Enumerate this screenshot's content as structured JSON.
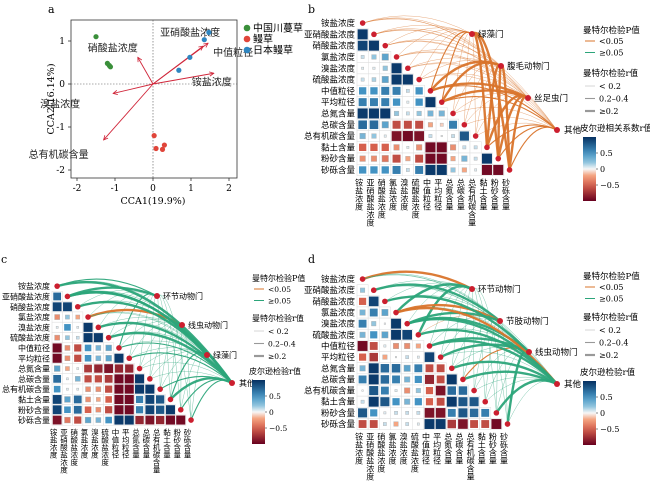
{
  "panel_labels": [
    "a",
    "b",
    "c",
    "d"
  ],
  "legend_common": {
    "p_title": "曼特尔检验P值",
    "p_items": [
      "<0.05",
      "≥0.05"
    ],
    "r_title": "曼特尔检验r值",
    "r_items": [
      "< 0.2",
      "0.2–0.4",
      "≥0.2"
    ],
    "colorbar_ticks": [
      "0.5",
      "0",
      "−0.5"
    ],
    "colorbar_tick_values": [
      0.5,
      0,
      -0.5
    ]
  },
  "colors": {
    "p_significant": "#d9742b",
    "p_nonsignificant": "#2ca57a",
    "point_red": "#d9433f",
    "arrow": "#d0263a",
    "green_group": "#3a8f3a",
    "red_group": "#e0453a",
    "blue_group": "#2e86c1"
  },
  "variables": [
    "铵盐浓度",
    "亚硝酸盐浓度",
    "硝酸盐浓度",
    "氯盐浓度",
    "溴盐浓度",
    "硫酸盐浓度",
    "中值粒径",
    "平均粒径",
    "总氮含量",
    "总碳含量",
    "总有机碳含量",
    "黏土含量",
    "粉砂含量",
    "砂砾含量"
  ],
  "chart_data": [
    {
      "type": "scatter",
      "xlabel": "CCA1(19.9%)",
      "ylabel": "CCA2(16.14%)",
      "xlim": [
        -2.2,
        2.2
      ],
      "ylim": [
        -2.2,
        1.5
      ],
      "xticks": [
        -2,
        -1,
        0,
        1,
        2
      ],
      "yticks": [
        1,
        0,
        -1,
        -2
      ],
      "legend_position": "right",
      "series": [
        {
          "name": "中国川蔓草",
          "color": "#3a8f3a",
          "points": [
            [
              -1.5,
              1.1
            ],
            [
              -1.2,
              0.48
            ],
            [
              -1.15,
              0.43
            ],
            [
              -1.12,
              0.4
            ]
          ]
        },
        {
          "name": "鳗草",
          "color": "#e0453a",
          "points": [
            [
              0.03,
              -1.2
            ],
            [
              0.08,
              -1.5
            ],
            [
              0.25,
              -1.52
            ],
            [
              0.3,
              -1.42
            ]
          ]
        },
        {
          "name": "日本鳗草",
          "color": "#2e86c1",
          "points": [
            [
              1.47,
              1.2
            ],
            [
              1.35,
              1.03
            ],
            [
              0.97,
              0.62
            ],
            [
              0.68,
              0.32
            ]
          ]
        }
      ],
      "arrows": [
        {
          "label": "亚硝酸盐浓度",
          "x": 1.45,
          "y": 0.95
        },
        {
          "label": "中值粒径",
          "x": 1.32,
          "y": 0.88
        },
        {
          "label": "硝酸盐浓度",
          "x": -0.4,
          "y": 0.62
        },
        {
          "label": "铵盐浓度",
          "x": 1.6,
          "y": 0.25
        },
        {
          "label": "溴盐浓度",
          "x": -1.05,
          "y": -0.22
        },
        {
          "label": "总有机碳含量",
          "x": -1.3,
          "y": -1.3
        }
      ]
    },
    {
      "type": "heatmap",
      "colorbar_title": "皮尔逊相关系数r值",
      "taxa": [
        "绿藻门",
        "腹毛动物门",
        "丝足虫门",
        "其他"
      ],
      "lower_triangle": [
        [],
        [
          0.95
        ],
        [
          0.9,
          0.95
        ],
        [
          0.1,
          0.2,
          0.4
        ],
        [
          0.05,
          0.05,
          0.2,
          0.95
        ],
        [
          0.1,
          0.15,
          0.4,
          0.95,
          0.95
        ],
        [
          0.5,
          0.5,
          0.6,
          0.6,
          0.1,
          0.5
        ],
        [
          0.6,
          0.6,
          0.6,
          0.5,
          0.05,
          0.5,
          0.95
        ],
        [
          0.95,
          0.95,
          0.95,
          0.2,
          0.1,
          0.2,
          0.3,
          0.3
        ],
        [
          0.7,
          0.7,
          0.4,
          -0.6,
          -0.6,
          -0.6,
          -0.2,
          -0.1,
          0.6
        ],
        [
          0.3,
          0.2,
          0.05,
          -0.9,
          -0.95,
          -0.9,
          0.1,
          0.02,
          0.1,
          0.8
        ],
        [
          -0.5,
          -0.5,
          -0.5,
          -0.3,
          0.05,
          -0.3,
          -0.95,
          -0.95,
          -0.3,
          0.1,
          0.1
        ],
        [
          -0.3,
          -0.3,
          -0.4,
          -0.6,
          -0.2,
          -0.6,
          -0.95,
          -0.95,
          -0.2,
          0.3,
          0.1,
          0.95
        ],
        [
          0.5,
          0.5,
          0.5,
          0.6,
          0.1,
          0.6,
          0.95,
          0.95,
          0.2,
          -0.2,
          0.05,
          -0.95,
          -0.95
        ]
      ],
      "mantel_r_class": [
        [
          0,
          0,
          0,
          0,
          0,
          0,
          1,
          1,
          0,
          0,
          0,
          2,
          2,
          2
        ],
        [
          0,
          0,
          0,
          0,
          0,
          0,
          2,
          2,
          0,
          0,
          0,
          2,
          2,
          2
        ],
        [
          0,
          0,
          0,
          0,
          0,
          0,
          2,
          2,
          0,
          0,
          0,
          2,
          2,
          2
        ],
        [
          0,
          0,
          0,
          0,
          0,
          0,
          1,
          1,
          0,
          0,
          0,
          1,
          1,
          1
        ]
      ],
      "mantel_significant": [
        [
          0,
          1,
          2,
          3,
          4,
          5,
          6,
          7,
          8,
          9,
          10,
          11,
          12,
          13
        ],
        [
          0,
          1,
          2,
          3,
          4,
          5,
          6,
          7,
          8,
          9,
          10,
          11,
          12,
          13
        ],
        [
          0,
          1,
          2,
          3,
          4,
          5,
          6,
          7,
          8,
          9,
          10,
          11,
          12,
          13
        ],
        [
          0,
          1,
          2,
          3,
          4,
          5,
          6,
          7,
          8,
          9,
          10,
          11,
          12,
          13
        ]
      ]
    },
    {
      "type": "heatmap",
      "colorbar_title": "皮尔逊检验r值",
      "taxa": [
        "环节动物门",
        "线虫动物门",
        "绿藻门",
        "其他"
      ],
      "lower_triangle": [
        [],
        [
          0.7
        ],
        [
          0.9,
          0.9
        ],
        [
          -0.3,
          0.2,
          -0.2
        ],
        [
          0.05,
          0.5,
          0.05,
          0.95
        ],
        [
          -0.3,
          0.2,
          0.1,
          0.95,
          0.95
        ],
        [
          -0.95,
          -0.3,
          -0.6,
          0.5,
          0.3,
          0.4
        ],
        [
          -0.95,
          -0.3,
          -0.6,
          0.5,
          0.3,
          0.4,
          0.95
        ],
        [
          0.4,
          -0.2,
          0.05,
          -0.7,
          -0.8,
          -0.9,
          -0.8,
          -0.8
        ],
        [
          0.7,
          0.05,
          0.3,
          -0.6,
          -0.6,
          -0.7,
          -0.95,
          -0.95,
          0.95
        ],
        [
          0.5,
          0.05,
          0.05,
          -0.3,
          -0.3,
          -0.6,
          -0.95,
          -0.95,
          0.95,
          0.95
        ],
        [
          0.9,
          0.4,
          0.7,
          -0.3,
          -0.2,
          -0.5,
          -0.95,
          -0.95,
          0.6,
          0.9,
          0.8
        ],
        [
          0.9,
          0.5,
          0.7,
          -0.5,
          -0.3,
          -0.6,
          -0.95,
          -0.95,
          0.6,
          0.9,
          0.8,
          0.95
        ],
        [
          -0.9,
          -0.4,
          -0.6,
          0.4,
          0.3,
          0.5,
          0.95,
          0.95,
          -0.8,
          -0.9,
          -0.8,
          -0.95,
          -0.95
        ]
      ],
      "mantel_r_class": [
        [
          1,
          2,
          0,
          0,
          0,
          0,
          1,
          0,
          0,
          0,
          0,
          0,
          0,
          0
        ],
        [
          0,
          0,
          0,
          2,
          0,
          0,
          0,
          0,
          0,
          0,
          0,
          0,
          0,
          0
        ],
        [
          0,
          2,
          2,
          0,
          0,
          0,
          0,
          0,
          0,
          0,
          0,
          1,
          0,
          0
        ],
        [
          2,
          2,
          0,
          0,
          2,
          2,
          1,
          1,
          0,
          0,
          1,
          2,
          1,
          1
        ]
      ],
      "mantel_significant": [
        [],
        [
          3
        ],
        [],
        []
      ]
    },
    {
      "type": "heatmap",
      "colorbar_title": "皮尔逊检验r值",
      "taxa": [
        "环节动物门",
        "节肢动物门",
        "线虫动物门",
        "其他"
      ],
      "lower_triangle": [
        [],
        [
          0.2
        ],
        [
          -0.5,
          0.9
        ],
        [
          0.3,
          0.6,
          0.4
        ],
        [
          0.6,
          0.2,
          0.02,
          0.95
        ],
        [
          0.3,
          0.5,
          0.4,
          0.95,
          0.9
        ],
        [
          -0.95,
          -0.6,
          0.05,
          -0.3,
          -0.3,
          -0.2
        ],
        [
          -0.5,
          -0.7,
          -0.2,
          0.02,
          0.1,
          0.05,
          0.9
        ],
        [
          0.3,
          0.95,
          0.7,
          0.7,
          0.4,
          0.6,
          -0.6,
          -0.6
        ],
        [
          0.6,
          0.95,
          0.7,
          0.6,
          0.3,
          0.5,
          -0.8,
          -0.6,
          0.95
        ],
        [
          0.02,
          0.8,
          0.6,
          0.05,
          -0.3,
          0.2,
          -0.5,
          -0.9,
          0.7,
          0.7
        ],
        [
          0.1,
          0.95,
          0.8,
          0.5,
          0.3,
          0.5,
          -0.5,
          -0.6,
          0.95,
          0.8,
          0.8
        ],
        [
          0.8,
          0.5,
          0.05,
          0.1,
          0.1,
          0.1,
          -0.9,
          -0.9,
          0.6,
          0.8,
          0.7,
          0.6
        ],
        [
          -0.6,
          -0.6,
          0.1,
          -0.2,
          0.1,
          0.05,
          0.95,
          0.95,
          -0.7,
          -0.9,
          -0.6,
          -0.6,
          -0.95
        ]
      ],
      "mantel_r_class": [
        [
          2,
          0,
          0,
          2,
          0,
          2,
          0,
          0,
          0,
          0,
          0,
          0,
          0,
          0
        ],
        [
          0,
          2,
          0,
          2,
          2,
          0,
          0,
          0,
          0,
          0,
          0,
          0,
          0,
          0
        ],
        [
          0,
          0,
          2,
          0,
          2,
          0,
          2,
          2,
          0,
          1,
          0,
          0,
          0,
          2
        ],
        [
          0,
          0,
          0,
          2,
          2,
          2,
          2,
          0,
          2,
          2,
          0,
          0,
          2,
          0
        ]
      ],
      "mantel_significant": [
        [
          0
        ],
        [
          3,
          5
        ],
        [
          9
        ],
        [
          3
        ]
      ]
    }
  ]
}
